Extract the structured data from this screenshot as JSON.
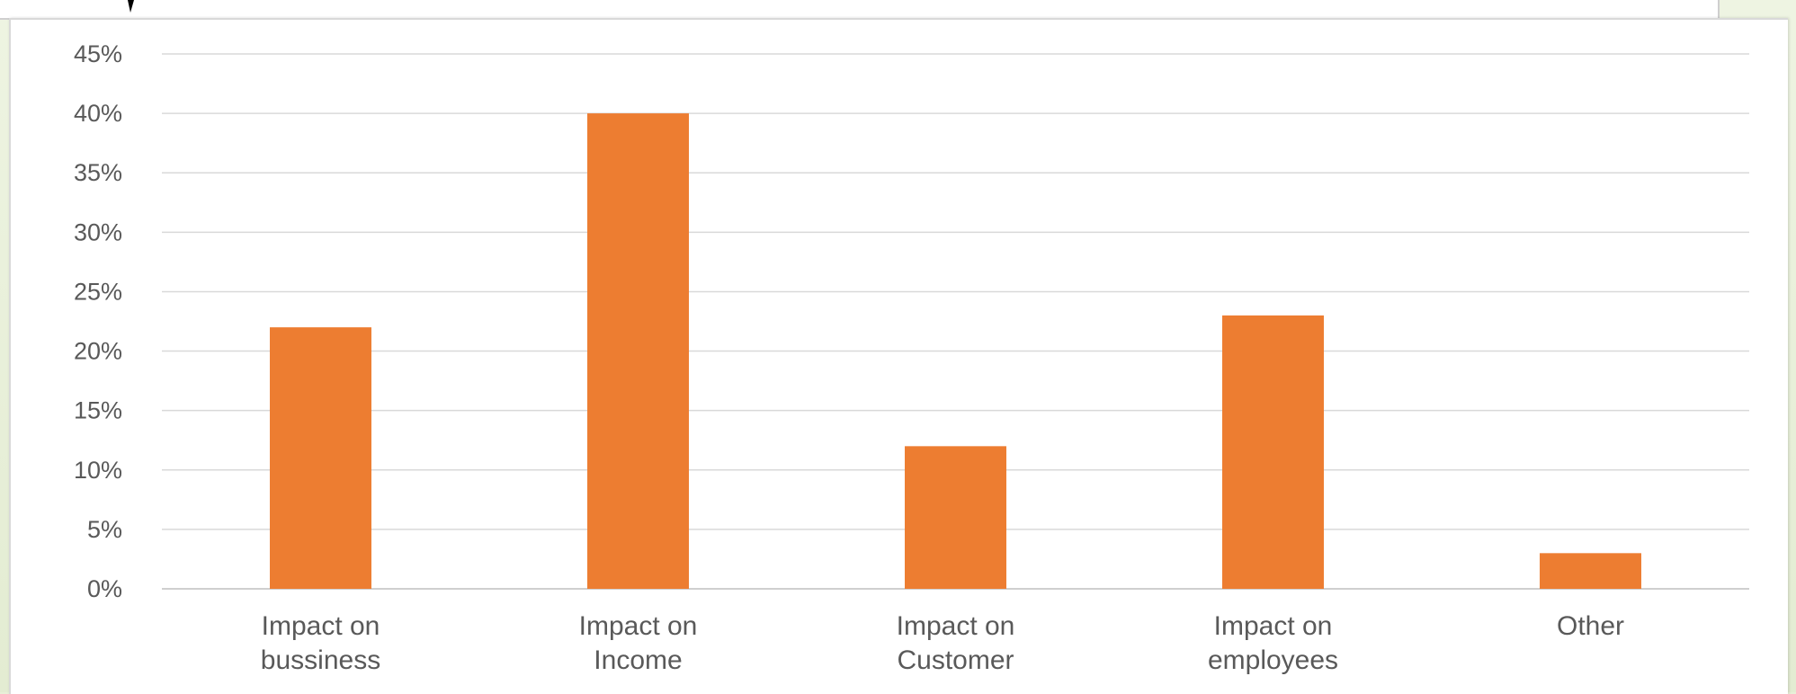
{
  "chart_data": {
    "type": "bar",
    "title": "",
    "xlabel": "",
    "ylabel": "",
    "categories": [
      [
        "Impact on",
        "bussiness"
      ],
      [
        "Impact on",
        "Income"
      ],
      [
        "Impact on",
        "Customer"
      ],
      [
        "Impact on",
        "employees"
      ],
      [
        "Other"
      ]
    ],
    "values": [
      0.22,
      0.4,
      0.12,
      0.23,
      0.03
    ],
    "ylim": [
      0,
      0.45
    ],
    "yticks": [
      "0%",
      "5%",
      "10%",
      "15%",
      "20%",
      "25%",
      "30%",
      "35%",
      "40%",
      "45%"
    ],
    "grid": true,
    "legend": "none",
    "bar_color": "#ED7D31"
  }
}
